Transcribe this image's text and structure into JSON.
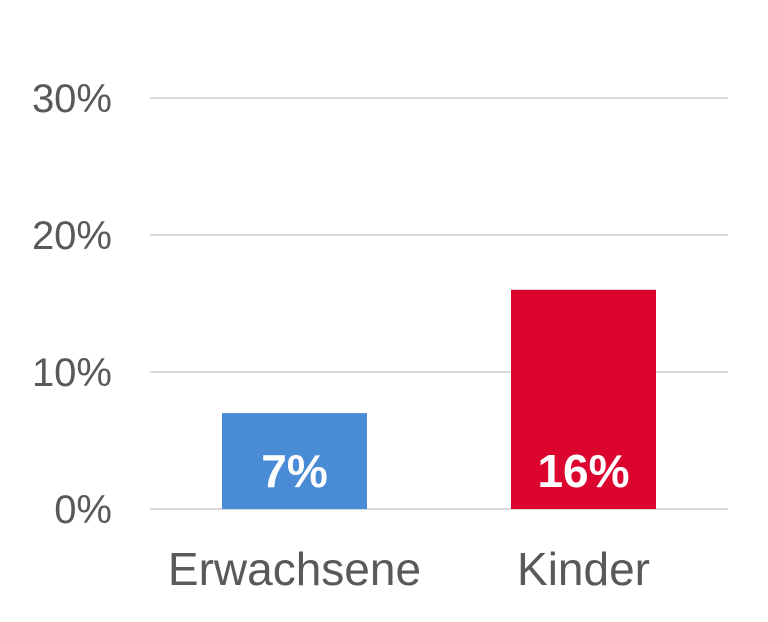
{
  "chart_data": {
    "type": "bar",
    "categories": [
      "Erwachsene",
      "Kinder"
    ],
    "values": [
      7,
      16
    ],
    "data_labels": [
      "7%",
      "16%"
    ],
    "bar_colors": [
      "#4a8bd6",
      "#dc0530"
    ],
    "y_ticks": [
      0,
      10,
      20,
      30
    ],
    "y_tick_labels": [
      "0%",
      "10%",
      "20%",
      "30%"
    ],
    "ylim": [
      0,
      30
    ],
    "grid": true,
    "legend": "none"
  }
}
